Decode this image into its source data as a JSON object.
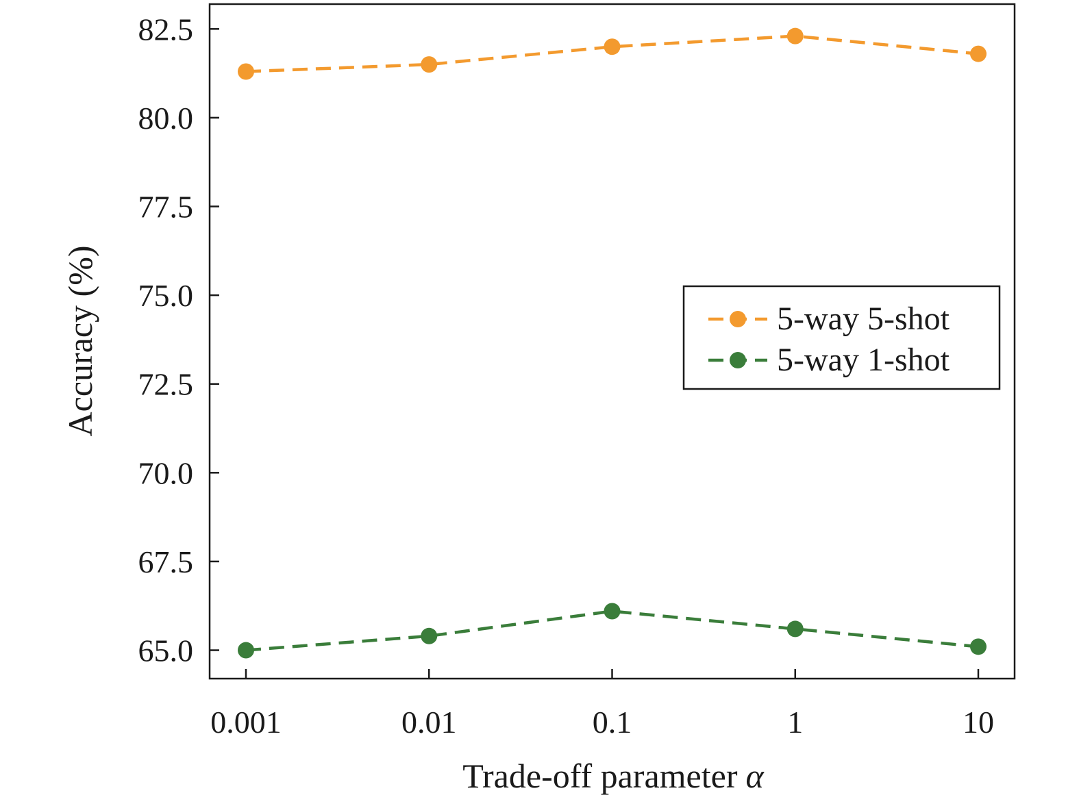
{
  "chart_data": {
    "type": "line",
    "xlabel": "Trade-off parameter",
    "xlabel_symbol": "α",
    "ylabel": "Accuracy (%)",
    "categories": [
      "0.001",
      "0.01",
      "0.1",
      "1",
      "10"
    ],
    "x": [
      0.001,
      0.01,
      0.1,
      1,
      10
    ],
    "x_scale": "log",
    "ylim": [
      64.2,
      83.2
    ],
    "yticks": [
      "65.0",
      "67.5",
      "70.0",
      "72.5",
      "75.0",
      "77.5",
      "80.0",
      "82.5"
    ],
    "grid": false,
    "legend_position": "center-right",
    "series": [
      {
        "name": "5-way 5-shot",
        "values": [
          81.3,
          81.5,
          82.0,
          82.3,
          81.8
        ],
        "color": "#F39A2E",
        "line_style": "dashed",
        "marker": "circle"
      },
      {
        "name": "5-way 1-shot",
        "values": [
          65.0,
          65.4,
          66.1,
          65.6,
          65.1
        ],
        "color": "#3A7D3A",
        "line_style": "dashed",
        "marker": "circle"
      }
    ]
  }
}
